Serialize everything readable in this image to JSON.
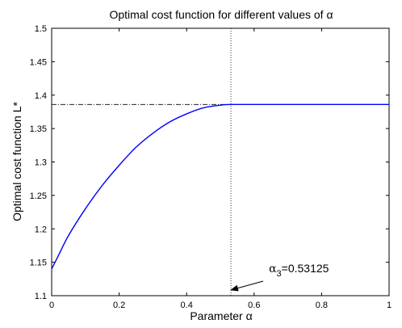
{
  "chart_data": {
    "type": "line",
    "title": "Optimal cost function for different values of α",
    "xlabel": "Parameter α",
    "ylabel": "Optimal cost function L*",
    "xlim": [
      0,
      1
    ],
    "ylim": [
      1.1,
      1.5
    ],
    "xticks": [
      0,
      0.2,
      0.4,
      0.6,
      0.8,
      1
    ],
    "xtick_labels": [
      "0",
      "0.2",
      "0.4",
      "0.6",
      "0.8",
      "1"
    ],
    "yticks": [
      1.1,
      1.15,
      1.2,
      1.25,
      1.3,
      1.35,
      1.4,
      1.45,
      1.5
    ],
    "ytick_labels": [
      "1.1",
      "1.15",
      "1.2",
      "1.25",
      "1.3",
      "1.35",
      "1.4",
      "1.45",
      "1.5"
    ],
    "grid": false,
    "series": [
      {
        "color": "#0000ff",
        "x": [
          0,
          0.02,
          0.05,
          0.1,
          0.15,
          0.2,
          0.25,
          0.3,
          0.35,
          0.4,
          0.45,
          0.5,
          0.53125,
          0.6,
          0.7,
          0.8,
          0.9,
          1.0
        ],
        "y": [
          1.14,
          1.16,
          1.19,
          1.23,
          1.265,
          1.295,
          1.322,
          1.343,
          1.36,
          1.372,
          1.381,
          1.385,
          1.386,
          1.386,
          1.386,
          1.386,
          1.386,
          1.386
        ]
      }
    ],
    "reference_lines": [
      {
        "orientation": "horizontal",
        "value": 1.386,
        "x_from": 0,
        "x_to": 0.53125,
        "style": "dashdot"
      },
      {
        "orientation": "vertical",
        "value": 0.53125,
        "style": "dotted"
      }
    ],
    "annotations": [
      {
        "text_symbol": "α",
        "text_subscript": "3",
        "text_value": "=0.53125",
        "arrow_to": [
          0.53125,
          1.1
        ]
      }
    ]
  }
}
